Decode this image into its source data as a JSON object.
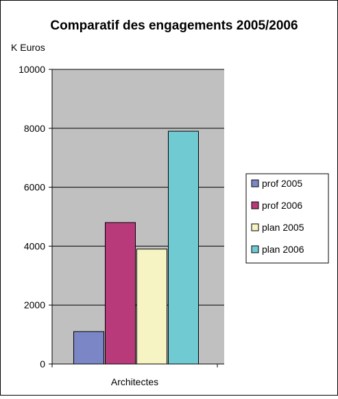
{
  "chart_data": {
    "type": "bar",
    "title": "Comparatif des engagements 2005/2006",
    "ylabel": "K Euros",
    "xlabel": "",
    "categories": [
      "Architectes"
    ],
    "series": [
      {
        "name": "prof 2005",
        "values": [
          1100
        ],
        "color": "#7b86c6"
      },
      {
        "name": "prof 2006",
        "values": [
          4800
        ],
        "color": "#b93a7b"
      },
      {
        "name": "plan 2005",
        "values": [
          3900
        ],
        "color": "#f6f4c2"
      },
      {
        "name": "plan 2006",
        "values": [
          7900
        ],
        "color": "#6fcad1"
      }
    ],
    "ylim": [
      0,
      10000
    ],
    "yticks": [
      "0",
      "2000",
      "4000",
      "6000",
      "8000",
      "10000"
    ],
    "grid": true,
    "legend": "right",
    "plot_background": "#c0c0c0"
  }
}
